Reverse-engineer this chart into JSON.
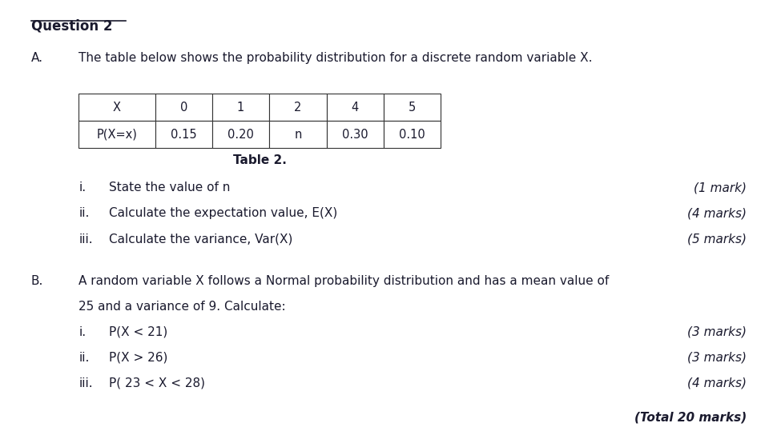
{
  "bg_color": "#ffffff",
  "text_color": "#1a1a2e",
  "title": "Question 2",
  "section_A_intro": "The table below shows the probability distribution for a discrete random variable X.",
  "table_headers": [
    "X",
    "0",
    "1",
    "2",
    "4",
    "5"
  ],
  "table_row2": [
    "P(X=x)",
    "0.15",
    "0.20",
    "n",
    "0.30",
    "0.10"
  ],
  "table_caption": "Table 2.",
  "section_A_items": [
    [
      "i.",
      "State the value of n",
      "(1 mark)"
    ],
    [
      "ii.",
      "Calculate the expectation value, E(X)",
      "(4 marks)"
    ],
    [
      "iii.",
      "Calculate the variance, Var(X)",
      "(5 marks)"
    ]
  ],
  "section_B_intro1": "A random variable X follows a Normal probability distribution and has a mean value of",
  "section_B_intro2": "25 and a variance of 9. Calculate:",
  "section_B_items": [
    [
      "i.",
      "P(X < 21)",
      "(3 marks)"
    ],
    [
      "ii.",
      "P(X > 26)",
      "(3 marks)"
    ],
    [
      "iii.",
      "P( 23 < X < 28)",
      "(4 marks)"
    ]
  ],
  "total": "(Total 20 marks)"
}
